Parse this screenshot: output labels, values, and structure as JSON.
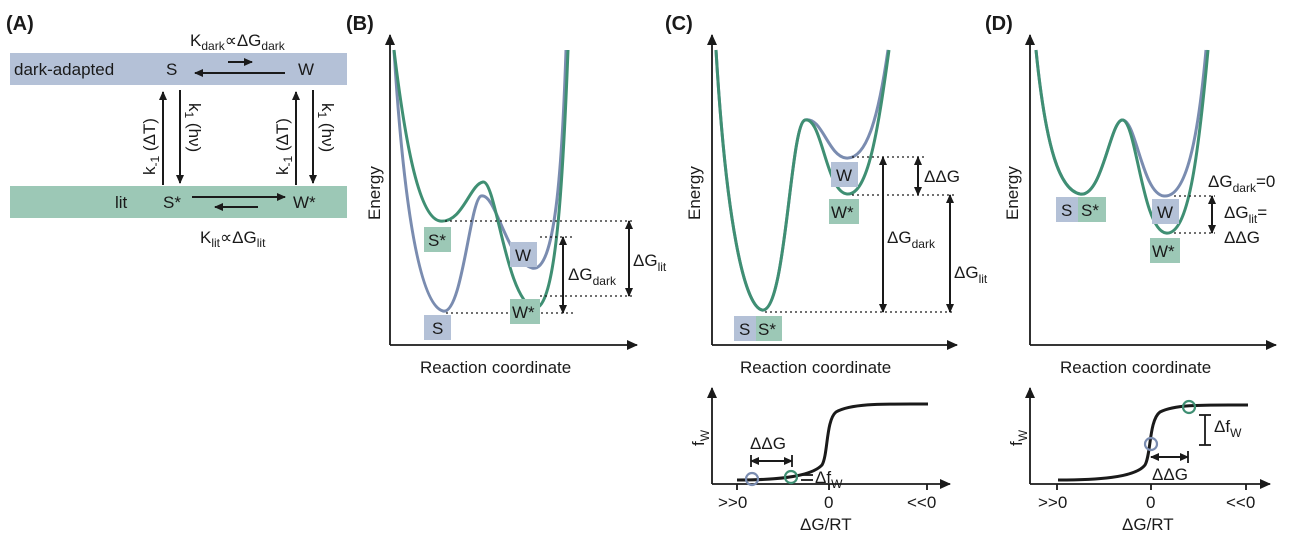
{
  "colors": {
    "dark_band": "#b4c1d7",
    "lit_band": "#9cc8b6",
    "blue_curve": "#7a8cb0",
    "green_curve": "#3f8f73",
    "blue_label_bg": "#b4c1d7",
    "green_label_bg": "#9cc8b6"
  },
  "panelA": {
    "label": "(A)",
    "dark_band_label": "dark-adapted",
    "lit_band_label": "lit",
    "S": "S",
    "W": "W",
    "S_star": "S*",
    "W_star": "W*",
    "K_dark_label": "K",
    "K_dark_sub": "dark",
    "K_dark_rel": "∝ΔG",
    "K_dark_rel_sub": "dark",
    "K_lit_label": "K",
    "K_lit_sub": "lit",
    "K_lit_rel": "∝ΔG",
    "K_lit_rel_sub": "lit",
    "k_minus1_left": "k",
    "k_minus1_sub": "-1",
    "k_minus1_arg": "(ΔT)",
    "k1_left": "k",
    "k1_sub": "1",
    "k1_arg": "(hν)"
  },
  "panelB": {
    "label": "(B)",
    "ylabel": "Energy",
    "xlabel": "Reaction coordinate",
    "S": "S",
    "S_star": "S*",
    "W": "W",
    "W_star": "W*",
    "dG_dark": "ΔG",
    "dG_dark_sub": "dark",
    "dG_lit": "ΔG",
    "dG_lit_sub": "lit"
  },
  "panelC": {
    "label": "(C)",
    "ylabel": "Energy",
    "xlabel": "Reaction coordinate",
    "S": "S",
    "S_star": "S*",
    "W": "W",
    "W_star": "W*",
    "ddG": "ΔΔG",
    "dG_dark": "ΔG",
    "dG_dark_sub": "dark",
    "dG_lit": "ΔG",
    "dG_lit_sub": "lit",
    "f_ylabel": "f",
    "f_ylabel_sub": "W",
    "f_xlabel": "ΔG/RT",
    "tick_left": ">>0",
    "tick_mid": "0",
    "tick_right": "<<0",
    "f_ddG": "ΔΔG",
    "f_df": "Δf",
    "f_df_sub": "W"
  },
  "panelD": {
    "label": "(D)",
    "ylabel": "Energy",
    "xlabel": "Reaction coordinate",
    "S": "S",
    "S_star": "S*",
    "W": "W",
    "W_star": "W*",
    "dG_dark_eq": "ΔG",
    "dG_dark_eq_sub": "dark",
    "dG_dark_eq_val": "=0",
    "dG_lit_eq": "ΔG",
    "dG_lit_eq_sub": "lit",
    "dG_lit_eq_tail": "=",
    "dG_lit_eq_val": "ΔΔG",
    "f_ylabel": "f",
    "f_ylabel_sub": "W",
    "f_xlabel": "ΔG/RT",
    "tick_left": ">>0",
    "tick_mid": "0",
    "tick_right": "<<0",
    "f_ddG": "ΔΔG",
    "f_df": "Δf",
    "f_df_sub": "W"
  }
}
